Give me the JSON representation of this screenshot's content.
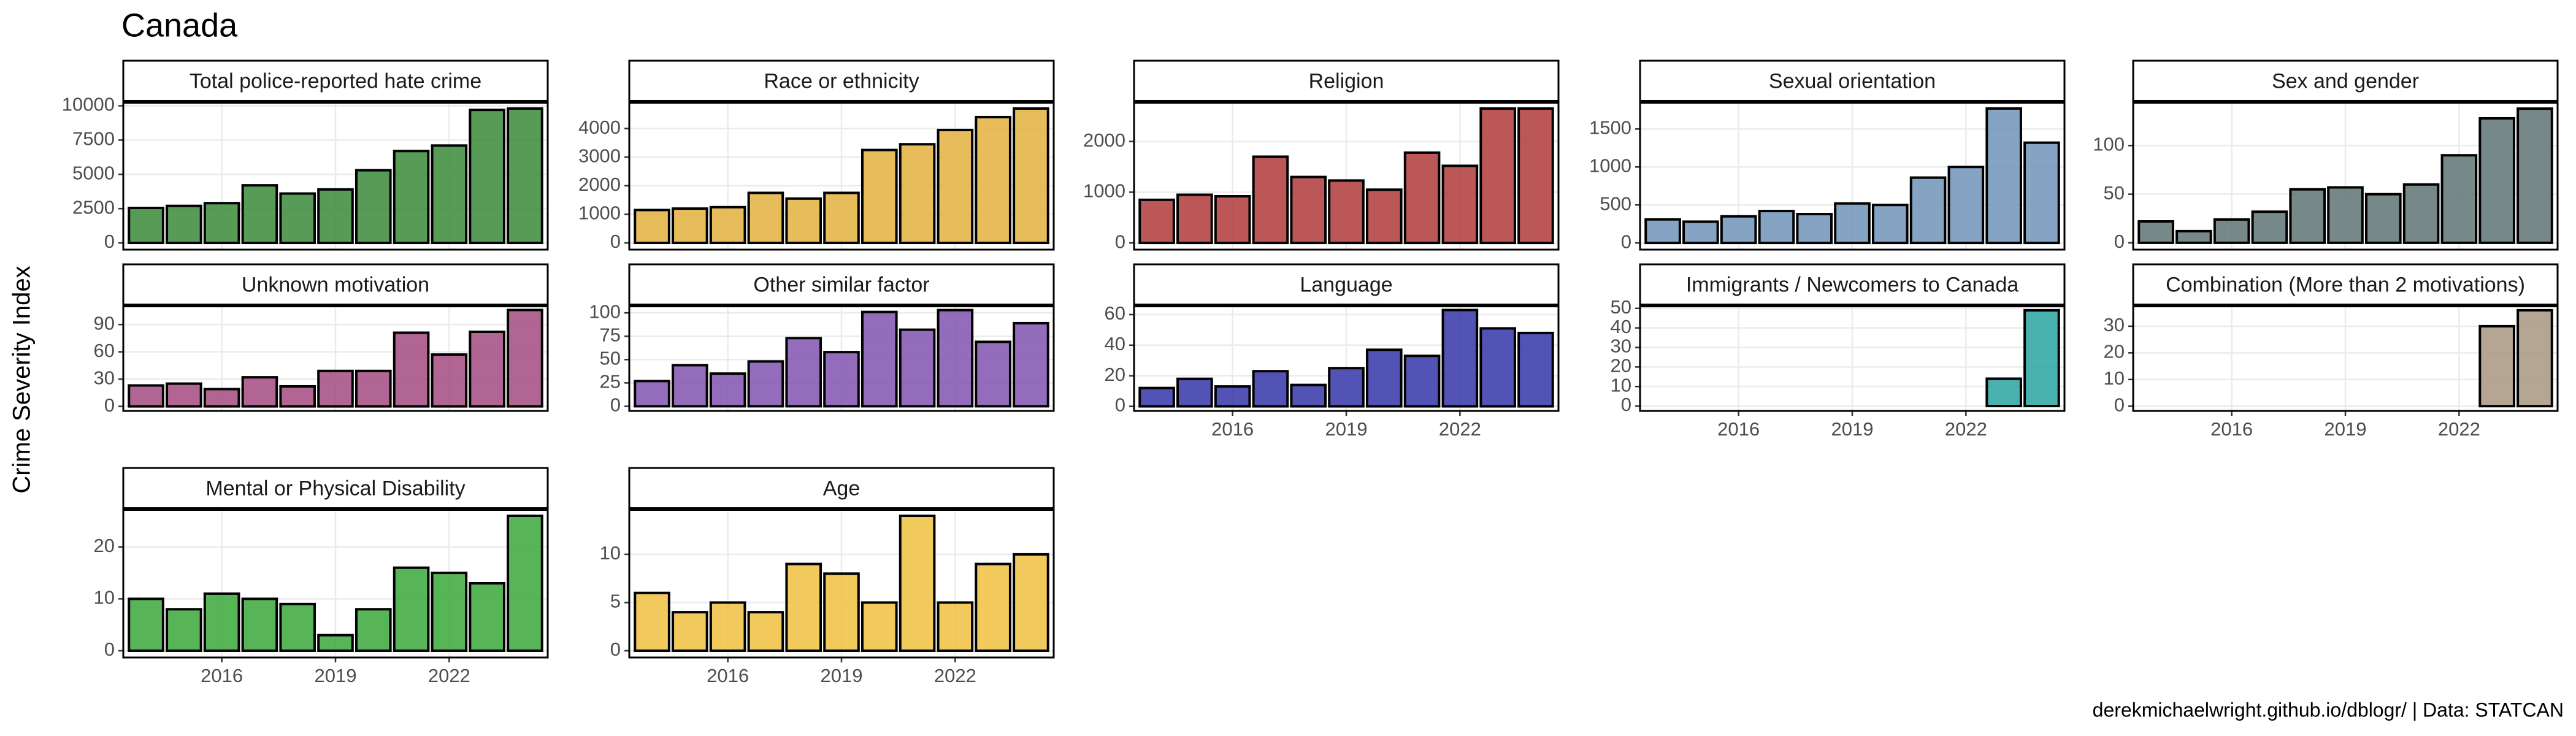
{
  "title": "Canada",
  "y_label": "Crime Severity Index",
  "caption": "derekmichaelwright.github.io/dblogr/ | Data: STATCAN",
  "chart_data": [
    {
      "type": "bar",
      "title": "Total police-reported hate crime",
      "x": [
        2014,
        2015,
        2016,
        2017,
        2018,
        2019,
        2020,
        2021,
        2022,
        2023,
        2024
      ],
      "values": [
        2550,
        2700,
        2900,
        4200,
        3600,
        3900,
        5300,
        6700,
        7100,
        9700,
        9800
      ],
      "color": "#3a8a3a",
      "xlim": [
        2013.4,
        2024.6
      ],
      "ylim": [
        -490,
        10290
      ],
      "xticks": [
        2016,
        2019,
        2022
      ],
      "yticks": [
        0,
        2500,
        5000,
        7500,
        10000
      ],
      "grid": true
    },
    {
      "type": "bar",
      "title": "Race or ethnicity",
      "x": [
        2014,
        2015,
        2016,
        2017,
        2018,
        2019,
        2020,
        2021,
        2022,
        2023,
        2024
      ],
      "values": [
        1150,
        1200,
        1250,
        1750,
        1550,
        1750,
        3250,
        3450,
        3950,
        4400,
        4700
      ],
      "color": "#e3b240",
      "xlim": [
        2013.4,
        2024.6
      ],
      "ylim": [
        -235,
        4935
      ],
      "xticks": [
        2016,
        2019,
        2022
      ],
      "yticks": [
        0,
        1000,
        2000,
        3000,
        4000
      ],
      "grid": true
    },
    {
      "type": "bar",
      "title": "Religion",
      "x": [
        2014,
        2015,
        2016,
        2017,
        2018,
        2019,
        2020,
        2021,
        2022,
        2023,
        2024
      ],
      "values": [
        850,
        950,
        920,
        1700,
        1300,
        1230,
        1050,
        1780,
        1520,
        2650,
        2650
      ],
      "color": "#b03a3a",
      "xlim": [
        2013.4,
        2024.6
      ],
      "ylim": [
        -132,
        2782
      ],
      "xticks": [
        2016,
        2019,
        2022
      ],
      "yticks": [
        0,
        1000,
        2000
      ],
      "grid": true
    },
    {
      "type": "bar",
      "title": "Sexual orientation",
      "x": [
        2014,
        2015,
        2016,
        2017,
        2018,
        2019,
        2020,
        2021,
        2022,
        2023,
        2024
      ],
      "values": [
        310,
        280,
        350,
        420,
        380,
        520,
        500,
        860,
        1000,
        1770,
        1320
      ],
      "color": "#7094b9",
      "xlim": [
        2013.4,
        2024.6
      ],
      "ylim": [
        -88,
        1858
      ],
      "xticks": [
        2016,
        2019,
        2022
      ],
      "yticks": [
        0,
        500,
        1000,
        1500
      ],
      "grid": true
    },
    {
      "type": "bar",
      "title": "Sex and gender",
      "x": [
        2014,
        2015,
        2016,
        2017,
        2018,
        2019,
        2020,
        2021,
        2022,
        2023,
        2024
      ],
      "values": [
        22,
        12,
        24,
        32,
        55,
        57,
        50,
        60,
        90,
        128,
        138
      ],
      "color": "#5f7373",
      "xlim": [
        2013.4,
        2024.6
      ],
      "ylim": [
        -7,
        145
      ],
      "xticks": [
        2016,
        2019,
        2022
      ],
      "yticks": [
        0,
        50,
        100
      ],
      "grid": true
    },
    {
      "type": "bar",
      "title": "Unknown motivation",
      "x": [
        2014,
        2015,
        2016,
        2017,
        2018,
        2019,
        2020,
        2021,
        2022,
        2023,
        2024
      ],
      "values": [
        23,
        25,
        19,
        32,
        22,
        39,
        39,
        81,
        57,
        82,
        106
      ],
      "color": "#a34a80",
      "xlim": [
        2013.4,
        2024.6
      ],
      "ylim": [
        -5,
        111
      ],
      "xticks": [
        2016,
        2019,
        2022
      ],
      "yticks": [
        0,
        30,
        60,
        90
      ],
      "grid": true
    },
    {
      "type": "bar",
      "title": "Other similar factor",
      "x": [
        2014,
        2015,
        2016,
        2017,
        2018,
        2019,
        2020,
        2021,
        2022,
        2023,
        2024
      ],
      "values": [
        27,
        44,
        35,
        48,
        73,
        58,
        101,
        82,
        103,
        69,
        89
      ],
      "color": "#8152b0",
      "xlim": [
        2013.4,
        2024.6
      ],
      "ylim": [
        -5,
        108
      ],
      "xticks": [
        2016,
        2019,
        2022
      ],
      "yticks": [
        0,
        25,
        50,
        75,
        100
      ],
      "grid": true
    },
    {
      "type": "bar",
      "title": "Language",
      "x": [
        2014,
        2015,
        2016,
        2017,
        2018,
        2019,
        2020,
        2021,
        2022,
        2023,
        2024
      ],
      "values": [
        12,
        18,
        13,
        23,
        14,
        25,
        37,
        33,
        63,
        51,
        48
      ],
      "color": "#3535a8",
      "xlim": [
        2013.4,
        2024.6
      ],
      "ylim": [
        -3,
        66
      ],
      "xticks": [
        2016,
        2019,
        2022
      ],
      "yticks": [
        0,
        20,
        40,
        60
      ],
      "grid": true
    },
    {
      "type": "bar",
      "title": "Immigrants / Newcomers to Canada",
      "x": [
        2014,
        2015,
        2016,
        2017,
        2018,
        2019,
        2020,
        2021,
        2022,
        2023,
        2024
      ],
      "values": [
        null,
        null,
        null,
        null,
        null,
        null,
        null,
        null,
        null,
        14,
        49
      ],
      "color": "#2aa5a0",
      "xlim": [
        2013.4,
        2024.6
      ],
      "ylim": [
        -2.5,
        51.5
      ],
      "xticks": [
        2016,
        2019,
        2022
      ],
      "yticks": [
        0,
        10,
        20,
        30,
        40,
        50
      ],
      "grid": true
    },
    {
      "type": "bar",
      "title": "Combination (More than 2 motivations)",
      "x": [
        2014,
        2015,
        2016,
        2017,
        2018,
        2019,
        2020,
        2021,
        2022,
        2023,
        2024
      ],
      "values": [
        null,
        null,
        null,
        null,
        null,
        null,
        null,
        null,
        null,
        30,
        36
      ],
      "color": "#a89580",
      "xlim": [
        2013.4,
        2024.6
      ],
      "ylim": [
        -1.8,
        37.8
      ],
      "xticks": [
        2016,
        2019,
        2022
      ],
      "yticks": [
        0,
        10,
        20,
        30
      ],
      "grid": true
    },
    {
      "type": "bar",
      "title": "Mental or Physical Disability",
      "x": [
        2014,
        2015,
        2016,
        2017,
        2018,
        2019,
        2020,
        2021,
        2022,
        2023,
        2024
      ],
      "values": [
        10,
        8,
        11,
        10,
        9,
        3,
        8,
        16,
        15,
        13,
        26
      ],
      "color": "#3aa83a",
      "xlim": [
        2013.4,
        2024.6
      ],
      "ylim": [
        -1.3,
        27.3
      ],
      "xticks": [
        2016,
        2019,
        2022
      ],
      "yticks": [
        0,
        10,
        20
      ],
      "grid": true
    },
    {
      "type": "bar",
      "title": "Age",
      "x": [
        2014,
        2015,
        2016,
        2017,
        2018,
        2019,
        2020,
        2021,
        2022,
        2023,
        2024
      ],
      "values": [
        6,
        4,
        5,
        4,
        9,
        8,
        5,
        14,
        5,
        9,
        10
      ],
      "color": "#f0c040",
      "xlim": [
        2013.4,
        2024.6
      ],
      "ylim": [
        -0.7,
        14.7
      ],
      "xticks": [
        2016,
        2019,
        2022
      ],
      "yticks": [
        0,
        5,
        10
      ],
      "grid": true
    }
  ]
}
